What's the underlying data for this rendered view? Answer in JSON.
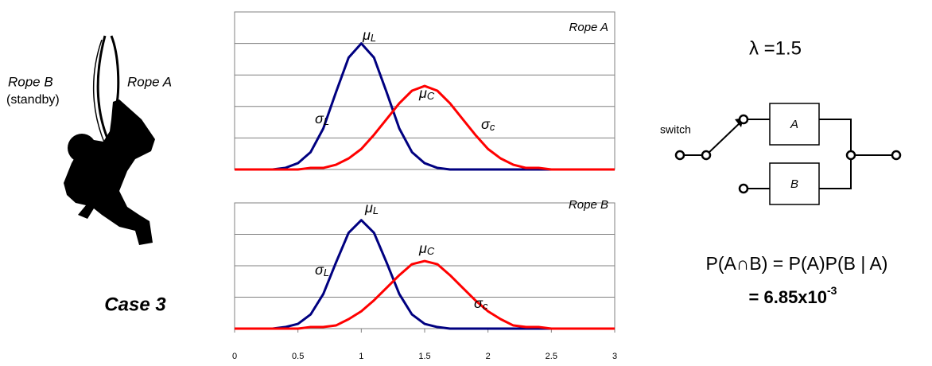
{
  "chart_data": [
    {
      "type": "line",
      "label": "Rope A",
      "x": [
        0,
        0.1,
        0.2,
        0.3,
        0.4,
        0.5,
        0.6,
        0.7,
        0.8,
        0.9,
        1,
        1.1,
        1.2,
        1.3,
        1.4,
        1.5,
        1.6,
        1.7,
        1.8,
        1.9,
        2,
        2.1,
        2.2,
        2.3,
        2.4,
        2.5,
        2.6,
        2.7,
        2.8,
        2.9,
        3
      ],
      "series": [
        {
          "color": "#000080",
          "values": [
            0,
            0,
            0,
            0,
            0.01,
            0.04,
            0.11,
            0.26,
            0.49,
            0.71,
            0.8,
            0.71,
            0.49,
            0.26,
            0.11,
            0.04,
            0.01,
            0,
            0,
            0,
            0,
            0,
            0,
            0,
            0,
            0,
            0,
            0,
            0,
            0,
            0
          ]
        },
        {
          "color": "#ff0000",
          "values": [
            0,
            0,
            0,
            0,
            0,
            0,
            0.01,
            0.01,
            0.03,
            0.07,
            0.13,
            0.22,
            0.32,
            0.42,
            0.5,
            0.53,
            0.5,
            0.42,
            0.32,
            0.22,
            0.13,
            0.07,
            0.03,
            0.01,
            0.01,
            0,
            0,
            0,
            0,
            0,
            0
          ]
        }
      ],
      "annotations": [
        {
          "text": "μ",
          "sub": "L"
        },
        {
          "text": "μ",
          "sub": "C"
        },
        {
          "text": "σ",
          "sub": "L"
        },
        {
          "text": "σ",
          "sub": "c"
        }
      ],
      "xlim": [
        0,
        3
      ],
      "ylim": [
        0,
        1
      ],
      "ygrid": [
        0,
        0.2,
        0.4,
        0.6,
        0.8,
        1
      ]
    },
    {
      "type": "line",
      "label": "Rope B",
      "x": [
        0,
        0.1,
        0.2,
        0.3,
        0.4,
        0.5,
        0.6,
        0.7,
        0.8,
        0.9,
        1,
        1.1,
        1.2,
        1.3,
        1.4,
        1.5,
        1.6,
        1.7,
        1.8,
        1.9,
        2,
        2.1,
        2.2,
        2.3,
        2.4,
        2.5,
        2.6,
        2.7,
        2.8,
        2.9,
        3
      ],
      "series": [
        {
          "color": "#000080",
          "values": [
            0,
            0,
            0,
            0,
            0.01,
            0.03,
            0.09,
            0.22,
            0.42,
            0.61,
            0.69,
            0.61,
            0.42,
            0.22,
            0.09,
            0.03,
            0.01,
            0,
            0,
            0,
            0,
            0,
            0,
            0,
            0,
            0,
            0,
            0,
            0,
            0,
            0
          ]
        },
        {
          "color": "#ff0000",
          "values": [
            0,
            0,
            0,
            0,
            0,
            0,
            0.01,
            0.01,
            0.02,
            0.06,
            0.11,
            0.18,
            0.26,
            0.34,
            0.41,
            0.43,
            0.41,
            0.34,
            0.26,
            0.18,
            0.11,
            0.06,
            0.02,
            0.01,
            0.01,
            0,
            0,
            0,
            0,
            0,
            0
          ]
        }
      ],
      "annotations": [
        {
          "text": "μ",
          "sub": "L"
        },
        {
          "text": "μ",
          "sub": "C"
        },
        {
          "text": "σ",
          "sub": "L"
        },
        {
          "text": "σ",
          "sub": "c"
        }
      ],
      "xlim": [
        0,
        3
      ],
      "ylim": [
        0,
        0.8
      ],
      "ygrid": [
        0,
        0.2,
        0.4,
        0.6,
        0.8
      ],
      "xticks": [
        0,
        0.5,
        1,
        1.5,
        2,
        2.5,
        3
      ]
    }
  ],
  "figure": {
    "rope_b": "Rope B",
    "standby": "(standby)",
    "rope_a": "Rope A",
    "case": "Case 3",
    "lambda": "λ =1.5",
    "switch": "switch",
    "box_a": "A",
    "box_b": "B",
    "formula": "P(A∩B) = P(A)P(B | A)",
    "result": "= 6.85x10",
    "result_exp": "-3"
  }
}
